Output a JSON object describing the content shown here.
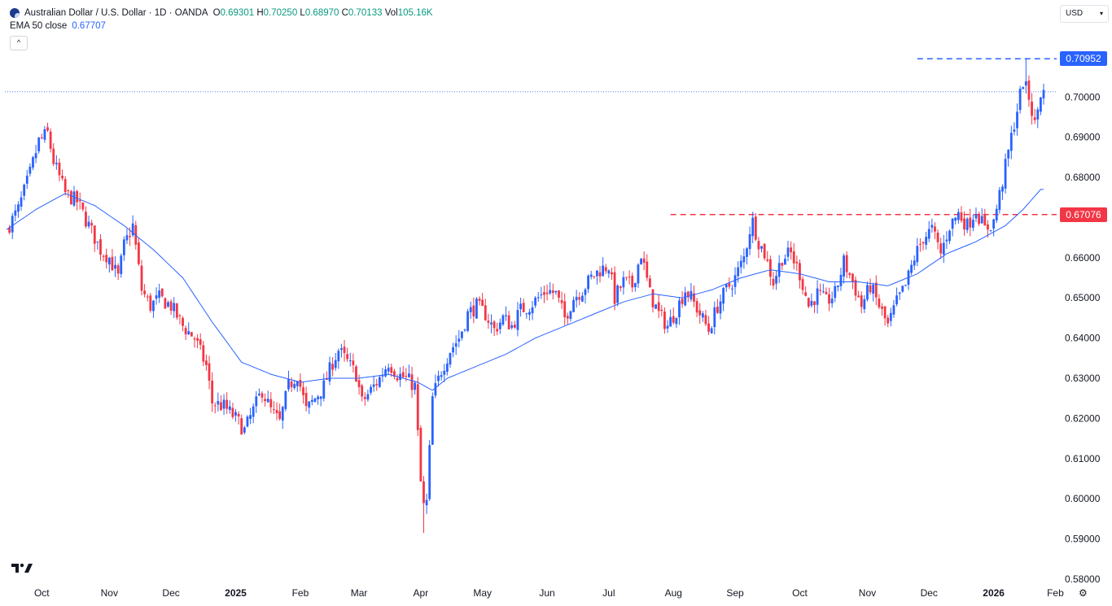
{
  "legend": {
    "title": "Australian Dollar / U.S. Dollar · 1D · OANDA",
    "open_key": "O",
    "open_val": "0.69301",
    "high_key": "H",
    "high_val": "0.70250",
    "low_key": "L",
    "low_val": "0.68970",
    "close_key": "C",
    "close_val": "0.70133",
    "vol_key": "Vol",
    "vol_val": "105.16K",
    "ema_label": "EMA 50 close",
    "ema_val": "0.67707",
    "collapse_glyph": "^"
  },
  "toolbar": {
    "currency": "USD",
    "currency_arrow": "▾"
  },
  "icons": {
    "logo": "tradingview-logo-icon",
    "settings": "gear-icon",
    "symbol": "aud-usd-flag-icon"
  },
  "colors": {
    "up": "#2962ff",
    "down": "#f23645",
    "ema": "#2962ff",
    "resistance": "#2962ff",
    "support": "#f23645",
    "last_price": "#2962ff"
  },
  "settings_glyph": "⚙",
  "chart_data": {
    "type": "candlestick",
    "ylim": [
      0.58,
      0.712
    ],
    "yticks": [
      "0.70000",
      "0.69000",
      "0.68000",
      "0.67000",
      "0.66000",
      "0.65000",
      "0.64000",
      "0.63000",
      "0.62000",
      "0.61000",
      "0.60000",
      "0.59000",
      "0.58000"
    ],
    "xticks": [
      {
        "label": "Oct",
        "index": 12,
        "bold": false
      },
      {
        "label": "Nov",
        "index": 35,
        "bold": false
      },
      {
        "label": "Dec",
        "index": 56,
        "bold": false
      },
      {
        "label": "2025",
        "index": 78,
        "bold": true
      },
      {
        "label": "Feb",
        "index": 100,
        "bold": false
      },
      {
        "label": "Mar",
        "index": 120,
        "bold": false
      },
      {
        "label": "Apr",
        "index": 141,
        "bold": false
      },
      {
        "label": "May",
        "index": 162,
        "bold": false
      },
      {
        "label": "Jun",
        "index": 184,
        "bold": false
      },
      {
        "label": "Jul",
        "index": 205,
        "bold": false
      },
      {
        "label": "Aug",
        "index": 227,
        "bold": false
      },
      {
        "label": "Sep",
        "index": 248,
        "bold": false
      },
      {
        "label": "Oct",
        "index": 270,
        "bold": false
      },
      {
        "label": "Nov",
        "index": 293,
        "bold": false
      },
      {
        "label": "Dec",
        "index": 314,
        "bold": false
      },
      {
        "label": "2026",
        "index": 336,
        "bold": true
      },
      {
        "label": "Feb",
        "index": 357,
        "bold": false
      }
    ],
    "close_path": [
      [
        0,
        0.667
      ],
      [
        4,
        0.672
      ],
      [
        8,
        0.681
      ],
      [
        11,
        0.689
      ],
      [
        14,
        0.691
      ],
      [
        16,
        0.684
      ],
      [
        20,
        0.676
      ],
      [
        24,
        0.674
      ],
      [
        28,
        0.668
      ],
      [
        32,
        0.662
      ],
      [
        35,
        0.66
      ],
      [
        38,
        0.655
      ],
      [
        40,
        0.663
      ],
      [
        43,
        0.668
      ],
      [
        46,
        0.652
      ],
      [
        49,
        0.648
      ],
      [
        52,
        0.65
      ],
      [
        56,
        0.648
      ],
      [
        60,
        0.643
      ],
      [
        64,
        0.64
      ],
      [
        68,
        0.633
      ],
      [
        70,
        0.624
      ],
      [
        74,
        0.623
      ],
      [
        78,
        0.62
      ],
      [
        81,
        0.617
      ],
      [
        84,
        0.622
      ],
      [
        87,
        0.627
      ],
      [
        90,
        0.622
      ],
      [
        93,
        0.619
      ],
      [
        96,
        0.628
      ],
      [
        99,
        0.631
      ],
      [
        102,
        0.622
      ],
      [
        105,
        0.625
      ],
      [
        108,
        0.628
      ],
      [
        111,
        0.634
      ],
      [
        113,
        0.637
      ],
      [
        116,
        0.634
      ],
      [
        119,
        0.631
      ],
      [
        121,
        0.624
      ],
      [
        124,
        0.627
      ],
      [
        127,
        0.63
      ],
      [
        130,
        0.634
      ],
      [
        133,
        0.631
      ],
      [
        136,
        0.63
      ],
      [
        139,
        0.628
      ],
      [
        141,
        0.604
      ],
      [
        142,
        0.598
      ],
      [
        143,
        0.599
      ],
      [
        145,
        0.625
      ],
      [
        148,
        0.632
      ],
      [
        151,
        0.637
      ],
      [
        154,
        0.64
      ],
      [
        157,
        0.646
      ],
      [
        160,
        0.648
      ],
      [
        163,
        0.646
      ],
      [
        166,
        0.642
      ],
      [
        169,
        0.645
      ],
      [
        172,
        0.643
      ],
      [
        175,
        0.647
      ],
      [
        178,
        0.648
      ],
      [
        181,
        0.65
      ],
      [
        184,
        0.652
      ],
      [
        187,
        0.651
      ],
      [
        190,
        0.645
      ],
      [
        193,
        0.65
      ],
      [
        196,
        0.652
      ],
      [
        199,
        0.655
      ],
      [
        202,
        0.657
      ],
      [
        205,
        0.658
      ],
      [
        207,
        0.65
      ],
      [
        210,
        0.654
      ],
      [
        213,
        0.653
      ],
      [
        216,
        0.661
      ],
      [
        219,
        0.651
      ],
      [
        222,
        0.646
      ],
      [
        225,
        0.643
      ],
      [
        228,
        0.647
      ],
      [
        231,
        0.652
      ],
      [
        233,
        0.65
      ],
      [
        236,
        0.646
      ],
      [
        239,
        0.642
      ],
      [
        242,
        0.648
      ],
      [
        245,
        0.652
      ],
      [
        248,
        0.655
      ],
      [
        251,
        0.66
      ],
      [
        253,
        0.667
      ],
      [
        254,
        0.669
      ],
      [
        256,
        0.664
      ],
      [
        258,
        0.661
      ],
      [
        261,
        0.654
      ],
      [
        264,
        0.66
      ],
      [
        267,
        0.661
      ],
      [
        270,
        0.656
      ],
      [
        273,
        0.648
      ],
      [
        276,
        0.651
      ],
      [
        279,
        0.649
      ],
      [
        282,
        0.651
      ],
      [
        285,
        0.659
      ],
      [
        288,
        0.654
      ],
      [
        291,
        0.648
      ],
      [
        294,
        0.653
      ],
      [
        297,
        0.648
      ],
      [
        300,
        0.643
      ],
      [
        303,
        0.649
      ],
      [
        306,
        0.653
      ],
      [
        309,
        0.66
      ],
      [
        312,
        0.665
      ],
      [
        315,
        0.667
      ],
      [
        318,
        0.661
      ],
      [
        321,
        0.668
      ],
      [
        324,
        0.671
      ],
      [
        327,
        0.668
      ],
      [
        330,
        0.672
      ],
      [
        333,
        0.667
      ],
      [
        336,
        0.669
      ],
      [
        339,
        0.679
      ],
      [
        342,
        0.69
      ],
      [
        344,
        0.697
      ],
      [
        346,
        0.704
      ],
      [
        348,
        0.7
      ],
      [
        350,
        0.693
      ],
      [
        352,
        0.701
      ]
    ],
    "ema_path": [
      [
        0,
        0.667
      ],
      [
        10,
        0.672
      ],
      [
        20,
        0.676
      ],
      [
        30,
        0.673
      ],
      [
        40,
        0.668
      ],
      [
        50,
        0.662
      ],
      [
        60,
        0.655
      ],
      [
        70,
        0.644
      ],
      [
        80,
        0.634
      ],
      [
        90,
        0.631
      ],
      [
        100,
        0.629
      ],
      [
        110,
        0.63
      ],
      [
        120,
        0.63
      ],
      [
        130,
        0.631
      ],
      [
        140,
        0.629
      ],
      [
        145,
        0.627
      ],
      [
        150,
        0.63
      ],
      [
        160,
        0.633
      ],
      [
        170,
        0.636
      ],
      [
        180,
        0.64
      ],
      [
        190,
        0.643
      ],
      [
        200,
        0.646
      ],
      [
        210,
        0.649
      ],
      [
        220,
        0.651
      ],
      [
        230,
        0.65
      ],
      [
        240,
        0.652
      ],
      [
        250,
        0.655
      ],
      [
        260,
        0.657
      ],
      [
        270,
        0.656
      ],
      [
        280,
        0.654
      ],
      [
        290,
        0.654
      ],
      [
        300,
        0.653
      ],
      [
        310,
        0.656
      ],
      [
        320,
        0.661
      ],
      [
        330,
        0.664
      ],
      [
        340,
        0.668
      ],
      [
        346,
        0.672
      ],
      [
        352,
        0.677
      ]
    ],
    "levels": [
      {
        "value": 0.70952,
        "label": "0.70952",
        "style": "dashed",
        "start_index": 310
      },
      {
        "value": 0.67076,
        "label": "0.67076",
        "style": "dashed",
        "start_index": 226
      }
    ],
    "last_price": 0.70133,
    "overall_high": {
      "index": 347,
      "value": 0.70952
    },
    "overall_low": {
      "index": 142,
      "value": 0.5915
    }
  }
}
